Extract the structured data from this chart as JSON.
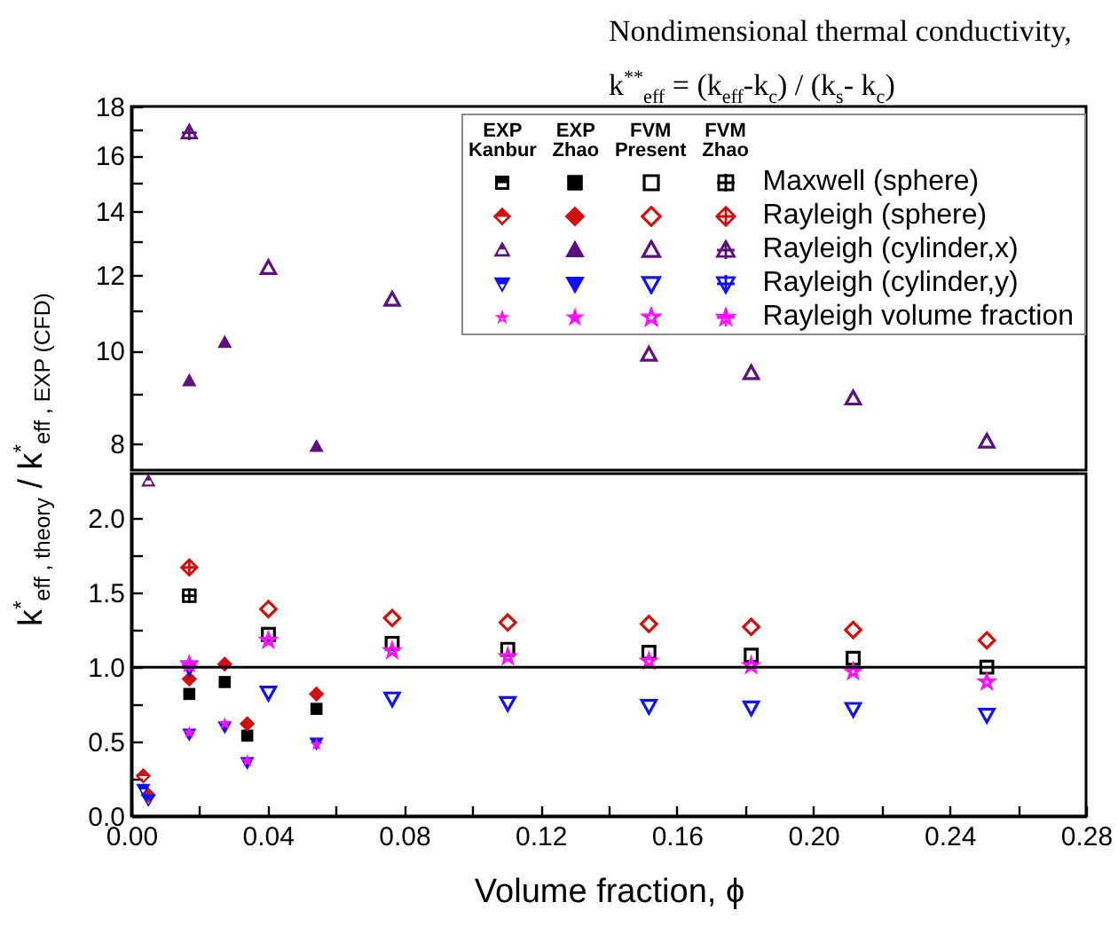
{
  "chart_data": [
    {
      "type": "scatter",
      "title": "Nondimensional thermal conductivity, k$^{**}$$_{eff}$ = (k$_{eff}$-k$_{c}$) / (k$_{s}$- k$_{c}$)",
      "log": "y",
      "tick_labels": "y",
      "xlim": [
        0,
        0.28
      ],
      "ylim": [
        7.5,
        18
      ],
      "yticks": [
        8,
        {
          "value": 9,
          "label": null
        },
        10,
        {
          "value": 11,
          "label": null
        },
        12,
        {
          "value": 13,
          "label": null
        },
        14,
        {
          "value": 15,
          "label": null
        },
        16,
        {
          "value": 17,
          "label": null
        },
        18
      ],
      "series": [
        {
          "color": "#5e0f7e",
          "marker": "triangle",
          "x": [
            0.017,
            0.0274,
            0.0543
          ],
          "values": [
            9.3,
            10.2,
            7.94
          ]
        },
        {
          "color": "#5e0f7e",
          "marker": "triangle",
          "x": [
            0.0402,
            0.0765,
            0.1518,
            0.1818,
            0.2117,
            0.2509
          ],
          "values": [
            12.2,
            11.3,
            9.9,
            9.47,
            8.91,
            8.03
          ]
        },
        {
          "color": "#5e0f7e",
          "marker": "cross",
          "x": [
            0.017
          ],
          "values": [
            16.9
          ]
        }
      ]
    },
    {
      "type": "scatter",
      "xlabel": "Volume fraction, ϕ",
      "ylabel": "k$^{*}$$_{eff , theory}$ / k$^{*}$$_{eff , EXP (CFD)}$",
      "legend": "top right",
      "legend_title": [
        "EXP Kanbur",
        "EXP Zhao",
        "FVM Present",
        "FVM Zhao"
      ],
      "xlim": [
        0,
        0.28
      ],
      "xticks": [
        {
          "value": 0,
          "label": "0.00"
        },
        {
          "value": 0.02,
          "label": null
        },
        {
          "value": 0.04,
          "label": "0.04"
        },
        {
          "value": 0.06,
          "label": null
        },
        {
          "value": 0.08,
          "label": "0.08"
        },
        {
          "value": 0.1,
          "label": null
        },
        {
          "value": 0.12,
          "label": "0.12"
        },
        {
          "value": 0.14,
          "label": null
        },
        {
          "value": 0.16,
          "label": "0.16"
        },
        {
          "value": 0.18,
          "label": null
        },
        {
          "value": 0.2,
          "label": "0.20"
        },
        {
          "value": 0.22,
          "label": null
        },
        {
          "value": 0.24,
          "label": "0.24"
        },
        {
          "value": 0.26,
          "label": null
        },
        {
          "value": 0.28,
          "label": "0.28"
        }
      ],
      "ylim": [
        0,
        2.3
      ],
      "yticks": [
        {
          "value": 0,
          "label": "0.0"
        },
        {
          "value": 0.25,
          "label": null
        },
        {
          "value": 0.5,
          "label": "0.5"
        },
        {
          "value": 0.75,
          "label": null
        },
        {
          "value": 1,
          "label": "1.0"
        },
        {
          "value": 1.25,
          "label": null
        },
        {
          "value": 1.5,
          "label": "1.5"
        },
        {
          "value": 1.75,
          "label": null
        },
        {
          "value": 2,
          "label": "2.0"
        }
      ],
      "ref_lines": [
        {
          "axis": "y",
          "value": 1,
          "color": "#000000"
        }
      ],
      "series": [
        {
          "name": "Maxwell (sphere)",
          "color": "#000000",
          "marker": "square",
          "x": [
            0.017,
            0.0274,
            0.034,
            0.0543
          ],
          "values": [
            0.82,
            0.9,
            0.54,
            0.72
          ]
        },
        {
          "color": "#000000",
          "marker": "square",
          "x": [
            0.0402,
            0.0765,
            0.1104,
            0.1518,
            0.1818,
            0.2117,
            0.2509
          ],
          "values": [
            1.22,
            1.16,
            1.12,
            1.1,
            1.08,
            1.06,
            1.0
          ]
        },
        {
          "color": "#000000",
          "marker": "cross",
          "x": [
            0.017
          ],
          "values": [
            1.48
          ]
        },
        {
          "name": "Rayleigh (sphere)",
          "color": "#d01010",
          "marker": "diamond",
          "x": [
            0.0035,
            0.005
          ],
          "values": [
            0.27,
            0.14
          ]
        },
        {
          "color": "#d01010",
          "marker": "diamond",
          "x": [
            0.017,
            0.0274,
            0.034,
            0.0543
          ],
          "values": [
            0.92,
            1.02,
            0.62,
            0.82
          ]
        },
        {
          "color": "#d01010",
          "marker": "diamond",
          "x": [
            0.0402,
            0.0765,
            0.1104,
            0.1518,
            0.1818,
            0.2117,
            0.2509
          ],
          "values": [
            1.39,
            1.33,
            1.3,
            1.29,
            1.27,
            1.25,
            1.18
          ]
        },
        {
          "color": "#d01010",
          "marker": "cross",
          "x": [
            0.017
          ],
          "values": [
            1.67
          ]
        },
        {
          "name": "Rayleigh (cylinder,x)",
          "color": "#5e0f7e",
          "marker": "triangle",
          "x": [
            0.005
          ],
          "values": [
            2.25
          ]
        },
        {
          "name": "Rayleigh (cylinder,y)",
          "color": "#1010ff",
          "marker": "triangle-down",
          "x": [
            0.0035,
            0.005
          ],
          "values": [
            0.18,
            0.11
          ]
        },
        {
          "color": "#1010ff",
          "marker": "triangle-down",
          "x": [
            0.017,
            0.0274,
            0.034,
            0.0543
          ],
          "values": [
            0.55,
            0.6,
            0.36,
            0.49
          ]
        },
        {
          "color": "#1010ff",
          "marker": "triangle-down",
          "x": [
            0.0402,
            0.0765,
            0.1104,
            0.1518,
            0.1818,
            0.2117,
            0.2509
          ],
          "values": [
            0.83,
            0.79,
            0.76,
            0.74,
            0.73,
            0.72,
            0.68
          ]
        },
        {
          "color": "#1010ff",
          "marker": "cross",
          "x": [
            0.017
          ],
          "values": [
            1.0
          ]
        },
        {
          "name": "Rayleigh volume fraction",
          "color": "#ff10ff",
          "marker": "star",
          "x": [
            0.017,
            0.0274,
            0.034,
            0.0543
          ],
          "values": [
            0.56,
            0.62,
            0.37,
            0.48
          ]
        },
        {
          "color": "#ff10ff",
          "marker": "star",
          "x": [
            0.0402,
            0.0765,
            0.1104,
            0.1518,
            0.1818,
            0.2117,
            0.2509
          ],
          "values": [
            1.18,
            1.11,
            1.07,
            1.04,
            1.01,
            0.97,
            0.9
          ]
        },
        {
          "color": "#ff10ff",
          "marker": "cross",
          "x": [
            0.017
          ],
          "values": [
            1.02
          ]
        }
      ]
    }
  ]
}
